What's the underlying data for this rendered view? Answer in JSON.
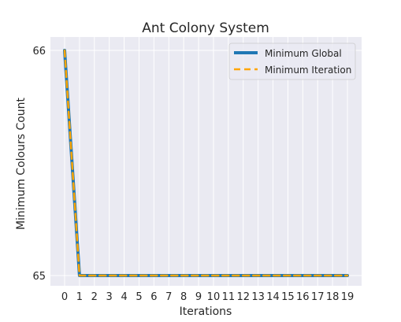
{
  "chart_data": {
    "type": "line",
    "title": "Ant Colony System",
    "xlabel": "Iterations",
    "ylabel": "Minimum Colours Count",
    "x": [
      0,
      1,
      2,
      3,
      4,
      5,
      6,
      7,
      8,
      9,
      10,
      11,
      12,
      13,
      14,
      15,
      16,
      17,
      18,
      19
    ],
    "xticks": [
      "0",
      "1",
      "2",
      "3",
      "4",
      "5",
      "6",
      "7",
      "8",
      "9",
      "10",
      "11",
      "12",
      "13",
      "14",
      "15",
      "16",
      "17",
      "18",
      "19"
    ],
    "yticks": [
      "65",
      "66"
    ],
    "ylim": [
      65,
      66
    ],
    "grid": true,
    "legend_position": "top-right",
    "series": [
      {
        "name": "Minimum Global",
        "color": "#1f77b4",
        "style": "solid",
        "values": [
          66,
          65,
          65,
          65,
          65,
          65,
          65,
          65,
          65,
          65,
          65,
          65,
          65,
          65,
          65,
          65,
          65,
          65,
          65,
          65
        ]
      },
      {
        "name": "Minimum Iteration",
        "color": "#ffa500",
        "style": "dashed",
        "values": [
          66,
          65,
          65,
          65,
          65,
          65,
          65,
          65,
          65,
          65,
          65,
          65,
          65,
          65,
          65,
          65,
          65,
          65,
          65,
          65
        ]
      }
    ]
  }
}
